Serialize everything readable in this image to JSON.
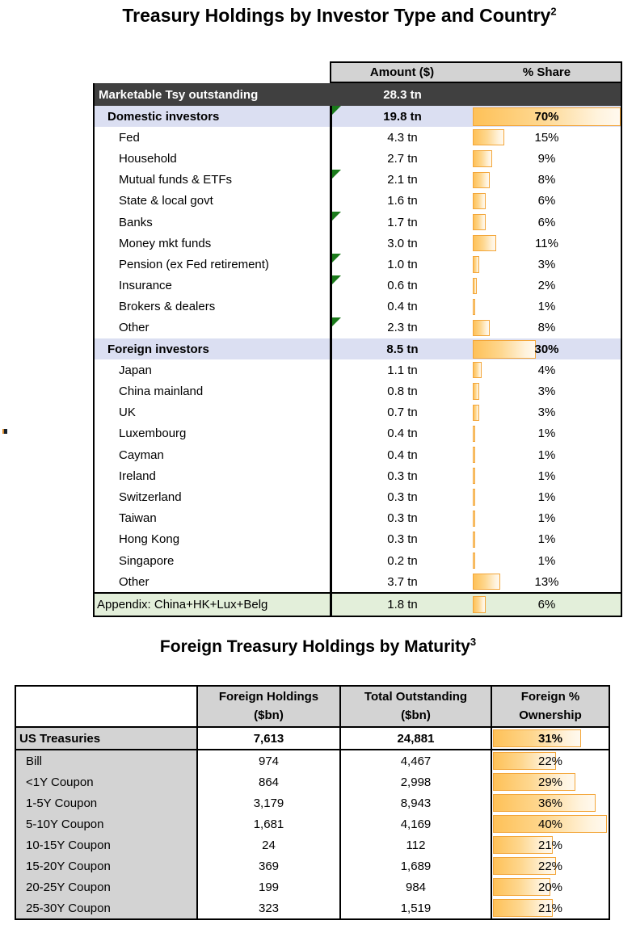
{
  "colors": {
    "bar_border": "#F3A63A",
    "bar_fill_left": "#FEC158",
    "bar_fill_right": "#FFF9EF",
    "dark_row_bg": "#404040",
    "section_row_bg": "#DBDFF2",
    "appendix_row_bg": "#E3EFDA",
    "header_bg": "#D3D3D3",
    "flag_green": "#1A7A1A"
  },
  "table1": {
    "title": "Treasury Holdings by Investor Type and Country",
    "title_sup": "2",
    "columns": {
      "amount": "Amount ($)",
      "share": "% Share"
    },
    "total_row": {
      "label": "Marketable Tsy outstanding",
      "amount": "28.3 tn"
    },
    "share_axis_max": 70,
    "rows": [
      {
        "label": "Domestic investors",
        "amount": "19.8 tn",
        "share": "70%",
        "share_value": 70,
        "style": "section",
        "flag": true
      },
      {
        "label": "Fed",
        "amount": "4.3 tn",
        "share": "15%",
        "share_value": 15,
        "style": "item",
        "flag": false
      },
      {
        "label": "Household",
        "amount": "2.7 tn",
        "share": "9%",
        "share_value": 9,
        "style": "item",
        "flag": false
      },
      {
        "label": "Mutual funds & ETFs",
        "amount": "2.1 tn",
        "share": "8%",
        "share_value": 8,
        "style": "item",
        "flag": true
      },
      {
        "label": "State & local govt",
        "amount": "1.6 tn",
        "share": "6%",
        "share_value": 6,
        "style": "item",
        "flag": false
      },
      {
        "label": "Banks",
        "amount": "1.7 tn",
        "share": "6%",
        "share_value": 6,
        "style": "item",
        "flag": true
      },
      {
        "label": "Money mkt funds",
        "amount": "3.0 tn",
        "share": "11%",
        "share_value": 11,
        "style": "item",
        "flag": false
      },
      {
        "label": "Pension (ex Fed retirement)",
        "amount": "1.0 tn",
        "share": "3%",
        "share_value": 3,
        "style": "item",
        "flag": true
      },
      {
        "label": "Insurance",
        "amount": "0.6 tn",
        "share": "2%",
        "share_value": 2,
        "style": "item",
        "flag": true
      },
      {
        "label": "Brokers & dealers",
        "amount": "0.4 tn",
        "share": "1%",
        "share_value": 1,
        "style": "item",
        "flag": false
      },
      {
        "label": "Other",
        "amount": "2.3 tn",
        "share": "8%",
        "share_value": 8,
        "style": "item",
        "flag": true
      },
      {
        "label": "Foreign investors",
        "amount": "8.5 tn",
        "share": "30%",
        "share_value": 30,
        "style": "section",
        "flag": false
      },
      {
        "label": "Japan",
        "amount": "1.1 tn",
        "share": "4%",
        "share_value": 4,
        "style": "item",
        "flag": false
      },
      {
        "label": "China mainland",
        "amount": "0.8 tn",
        "share": "3%",
        "share_value": 3,
        "style": "item",
        "flag": false
      },
      {
        "label": "UK",
        "amount": "0.7 tn",
        "share": "3%",
        "share_value": 3,
        "style": "item",
        "flag": false
      },
      {
        "label": "Luxembourg",
        "amount": "0.4 tn",
        "share": "1%",
        "share_value": 1,
        "style": "item",
        "flag": false
      },
      {
        "label": "Cayman",
        "amount": "0.4 tn",
        "share": "1%",
        "share_value": 1,
        "style": "item",
        "flag": false
      },
      {
        "label": "Ireland",
        "amount": "0.3 tn",
        "share": "1%",
        "share_value": 1,
        "style": "item",
        "flag": false
      },
      {
        "label": "Switzerland",
        "amount": "0.3 tn",
        "share": "1%",
        "share_value": 1,
        "style": "item",
        "flag": false
      },
      {
        "label": "Taiwan",
        "amount": "0.3 tn",
        "share": "1%",
        "share_value": 1,
        "style": "item",
        "flag": false
      },
      {
        "label": "Hong Kong",
        "amount": "0.3 tn",
        "share": "1%",
        "share_value": 1,
        "style": "item",
        "flag": false
      },
      {
        "label": "Singapore",
        "amount": "0.2 tn",
        "share": "1%",
        "share_value": 1,
        "style": "item",
        "flag": false
      },
      {
        "label": "Other",
        "amount": "3.7 tn",
        "share": "13%",
        "share_value": 13,
        "style": "item",
        "flag": false
      },
      {
        "label": "Appendix: China+HK+Lux+Belg",
        "amount": "1.8 tn",
        "share": "6%",
        "share_value": 6,
        "style": "appendix",
        "flag": false
      }
    ]
  },
  "table2": {
    "title": "Foreign Treasury Holdings by Maturity",
    "title_sup": "3",
    "columns": [
      {
        "line1": "Foreign Holdings",
        "line2": "($bn)"
      },
      {
        "line1": "Total Outstanding",
        "line2": "($bn)"
      },
      {
        "line1": "Foreign %",
        "line2": "Ownership"
      }
    ],
    "ownership_axis_max": 40,
    "rows": [
      {
        "label": "US Treasuries",
        "foreign": "7,613",
        "total": "24,881",
        "pct": "31%",
        "pct_value": 31,
        "style": "total"
      },
      {
        "label": "Bill",
        "foreign": "974",
        "total": "4,467",
        "pct": "22%",
        "pct_value": 22,
        "style": "item"
      },
      {
        "label": "<1Y Coupon",
        "foreign": "864",
        "total": "2,998",
        "pct": "29%",
        "pct_value": 29,
        "style": "item"
      },
      {
        "label": "1-5Y Coupon",
        "foreign": "3,179",
        "total": "8,943",
        "pct": "36%",
        "pct_value": 36,
        "style": "item"
      },
      {
        "label": "5-10Y Coupon",
        "foreign": "1,681",
        "total": "4,169",
        "pct": "40%",
        "pct_value": 40,
        "style": "item"
      },
      {
        "label": "10-15Y Coupon",
        "foreign": "24",
        "total": "112",
        "pct": "21%",
        "pct_value": 21,
        "style": "item"
      },
      {
        "label": "15-20Y Coupon",
        "foreign": "369",
        "total": "1,689",
        "pct": "22%",
        "pct_value": 22,
        "style": "item"
      },
      {
        "label": "20-25Y Coupon",
        "foreign": "199",
        "total": "984",
        "pct": "20%",
        "pct_value": 20,
        "style": "item"
      },
      {
        "label": "25-30Y Coupon",
        "foreign": "323",
        "total": "1,519",
        "pct": "21%",
        "pct_value": 21,
        "style": "item"
      }
    ]
  },
  "chart_data": [
    {
      "type": "bar",
      "title": "Treasury Holdings by Investor Type and Country — % Share data bars",
      "categories": [
        "Domestic investors",
        "Fed",
        "Household",
        "Mutual funds & ETFs",
        "State & local govt",
        "Banks",
        "Money mkt funds",
        "Pension (ex Fed retirement)",
        "Insurance",
        "Brokers & dealers",
        "Other",
        "Foreign investors",
        "Japan",
        "China mainland",
        "UK",
        "Luxembourg",
        "Cayman",
        "Ireland",
        "Switzerland",
        "Taiwan",
        "Hong Kong",
        "Singapore",
        "Other",
        "Appendix: China+HK+Lux+Belg"
      ],
      "values": [
        70,
        15,
        9,
        8,
        6,
        6,
        11,
        3,
        2,
        1,
        8,
        30,
        4,
        3,
        3,
        1,
        1,
        1,
        1,
        1,
        1,
        1,
        13,
        6
      ],
      "xlabel": "",
      "ylabel": "% Share",
      "ylim": [
        0,
        70
      ]
    },
    {
      "type": "bar",
      "title": "Foreign Treasury Holdings by Maturity — Foreign % Ownership data bars",
      "categories": [
        "US Treasuries",
        "Bill",
        "<1Y Coupon",
        "1-5Y Coupon",
        "5-10Y Coupon",
        "10-15Y Coupon",
        "15-20Y Coupon",
        "20-25Y Coupon",
        "25-30Y Coupon"
      ],
      "values": [
        31,
        22,
        29,
        36,
        40,
        21,
        22,
        20,
        21
      ],
      "xlabel": "",
      "ylabel": "Foreign % Ownership",
      "ylim": [
        0,
        40
      ]
    }
  ]
}
